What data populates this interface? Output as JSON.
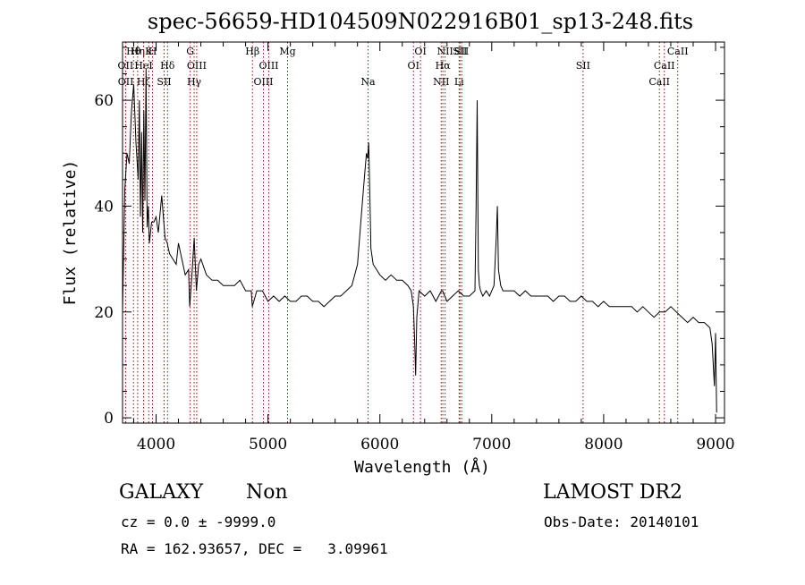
{
  "chart_data": {
    "type": "line",
    "title": "spec-56659-HD104509N022916B01_sp13-248.fits",
    "xlabel": "Wavelength (Å)",
    "ylabel": "Flux (relative)",
    "xlim": [
      3700,
      9080
    ],
    "ylim": [
      -1,
      71
    ],
    "x_ticks": [
      4000,
      5000,
      6000,
      7000,
      8000,
      9000
    ],
    "y_ticks": [
      0,
      20,
      40,
      60
    ],
    "grid": false,
    "series": [
      {
        "values_description": "spectrum",
        "x": [
          3700,
          3720,
          3740,
          3760,
          3780,
          3800,
          3820,
          3840,
          3850,
          3860,
          3870,
          3880,
          3890,
          3900,
          3910,
          3920,
          3930,
          3940,
          3960,
          3980,
          4000,
          4020,
          4050,
          4080,
          4100,
          4120,
          4150,
          4180,
          4200,
          4230,
          4260,
          4290,
          4300,
          4320,
          4340,
          4360,
          4380,
          4400,
          4450,
          4500,
          4550,
          4600,
          4650,
          4700,
          4750,
          4800,
          4850,
          4860,
          4900,
          4950,
          5000,
          5050,
          5100,
          5150,
          5200,
          5250,
          5300,
          5350,
          5400,
          5450,
          5500,
          5550,
          5600,
          5650,
          5700,
          5750,
          5800,
          5830,
          5860,
          5880,
          5890,
          5900,
          5910,
          5920,
          5940,
          5970,
          6000,
          6050,
          6100,
          6150,
          6200,
          6250,
          6280,
          6300,
          6310,
          6320,
          6330,
          6350,
          6400,
          6450,
          6500,
          6550,
          6560,
          6580,
          6600,
          6650,
          6700,
          6750,
          6800,
          6850,
          6860,
          6870,
          6880,
          6890,
          6900,
          6920,
          6950,
          6980,
          7000,
          7020,
          7040,
          7050,
          7060,
          7080,
          7100,
          7150,
          7200,
          7250,
          7300,
          7350,
          7400,
          7450,
          7500,
          7550,
          7600,
          7650,
          7700,
          7750,
          7800,
          7850,
          7900,
          7950,
          8000,
          8050,
          8100,
          8150,
          8200,
          8250,
          8300,
          8350,
          8400,
          8450,
          8500,
          8550,
          8600,
          8650,
          8700,
          8750,
          8800,
          8850,
          8900,
          8950,
          8970,
          8990,
          9000,
          9010
        ],
        "y": [
          20,
          43,
          50,
          48,
          58,
          63,
          52,
          45,
          60,
          38,
          54,
          35,
          58,
          41,
          66,
          36,
          40,
          33,
          37,
          37,
          38,
          35,
          42,
          34,
          33,
          31,
          30,
          29,
          33,
          30,
          27,
          28,
          21,
          27,
          34,
          24,
          29,
          30,
          27,
          26,
          26,
          25,
          25,
          25,
          26,
          24,
          24,
          21,
          24,
          24,
          22,
          23,
          22,
          23,
          22,
          22,
          23,
          23,
          22,
          22,
          21,
          22,
          23,
          23,
          24,
          25,
          29,
          37,
          45,
          50,
          49,
          52,
          42,
          32,
          29,
          28,
          27,
          26,
          27,
          26,
          26,
          25,
          24,
          21,
          15,
          8,
          19,
          24,
          23,
          24,
          22,
          24,
          24,
          23,
          22,
          23,
          24,
          23,
          23,
          24,
          40,
          60,
          28,
          25,
          24,
          23,
          24,
          23,
          24,
          25,
          34,
          40,
          28,
          25,
          24,
          24,
          24,
          23,
          24,
          23,
          23,
          23,
          23,
          22,
          23,
          23,
          22,
          22,
          23,
          22,
          22,
          21,
          22,
          21,
          21,
          21,
          21,
          21,
          20,
          21,
          20,
          19,
          20,
          20,
          21,
          20,
          19,
          18,
          19,
          18,
          18,
          17,
          14,
          6,
          16,
          1
        ]
      }
    ],
    "line_markers": [
      {
        "label": "OII",
        "wl": 3727,
        "row": 2
      },
      {
        "label": "OII",
        "wl": 3729,
        "row": 3
      },
      {
        "label": "Hθ",
        "wl": 3798,
        "row": 1
      },
      {
        "label": "Hη",
        "wl": 3835,
        "row": 1
      },
      {
        "label": "Hζ",
        "wl": 3889,
        "row": 3
      },
      {
        "label": "HeI",
        "wl": 3888,
        "row": 2
      },
      {
        "label": "K",
        "wl": 3934,
        "row": 1
      },
      {
        "label": "H",
        "wl": 3968,
        "row": 1
      },
      {
        "label": "Hδ",
        "wl": 4102,
        "row": 2
      },
      {
        "label": "SII",
        "wl": 4072,
        "row": 3
      },
      {
        "label": "G",
        "wl": 4305,
        "row": 1
      },
      {
        "label": "OIII",
        "wl": 4363,
        "row": 2
      },
      {
        "label": "Hγ",
        "wl": 4340,
        "row": 3
      },
      {
        "label": "Hβ",
        "wl": 4861,
        "row": 1
      },
      {
        "label": "OIII",
        "wl": 4959,
        "row": 3
      },
      {
        "label": "OIII",
        "wl": 5007,
        "row": 2
      },
      {
        "label": "Mg",
        "wl": 5175,
        "row": 1
      },
      {
        "label": "Na",
        "wl": 5894,
        "row": 3
      },
      {
        "label": "OI",
        "wl": 6300,
        "row": 2
      },
      {
        "label": "OI",
        "wl": 6363,
        "row": 1
      },
      {
        "label": "NII",
        "wl": 6548,
        "row": 3
      },
      {
        "label": "NII",
        "wl": 6583,
        "row": 1
      },
      {
        "label": "Hα",
        "wl": 6563,
        "row": 2
      },
      {
        "label": "Li",
        "wl": 6708,
        "row": 3
      },
      {
        "label": "SII",
        "wl": 6716,
        "row": 1
      },
      {
        "label": "SII",
        "wl": 6731,
        "row": 1
      },
      {
        "label": "SII",
        "wl": 7816,
        "row": 2
      },
      {
        "label": "CaII",
        "wl": 8498,
        "row": 3
      },
      {
        "label": "CaII",
        "wl": 8542,
        "row": 2
      },
      {
        "label": "CaII",
        "wl": 8662,
        "row": 1
      }
    ]
  },
  "info": {
    "class_label": "GALAXY",
    "subclass_label": "Non",
    "survey_label": "LAMOST DR2",
    "cz_line": "cz = 0.0 ± -9999.0",
    "obs_date_line": "Obs-Date: 20140101",
    "radec_line": "RA = 162.93657, DEC =   3.09961"
  }
}
